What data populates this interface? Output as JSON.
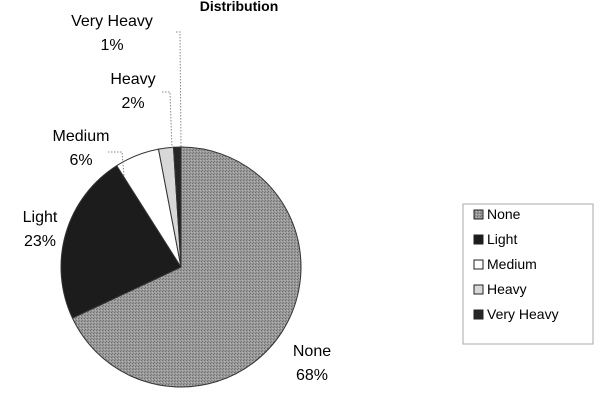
{
  "chart_data": {
    "type": "pie",
    "title": "Distribution",
    "categories": [
      "None",
      "Light",
      "Medium",
      "Heavy",
      "Very Heavy"
    ],
    "values": [
      68,
      23,
      6,
      2,
      1
    ],
    "data_labels": [
      {
        "name": "None",
        "percent": "68%"
      },
      {
        "name": "Light",
        "percent": "23%"
      },
      {
        "name": "Medium",
        "percent": "6%"
      },
      {
        "name": "Heavy",
        "percent": "2%"
      },
      {
        "name": "Very Heavy",
        "percent": "1%"
      }
    ],
    "colors": [
      "#8f8f8f",
      "#1c1c1c",
      "#ffffff",
      "#d8d8d8",
      "#262626"
    ],
    "legend_placement": "right",
    "start": "top, clockwise"
  }
}
